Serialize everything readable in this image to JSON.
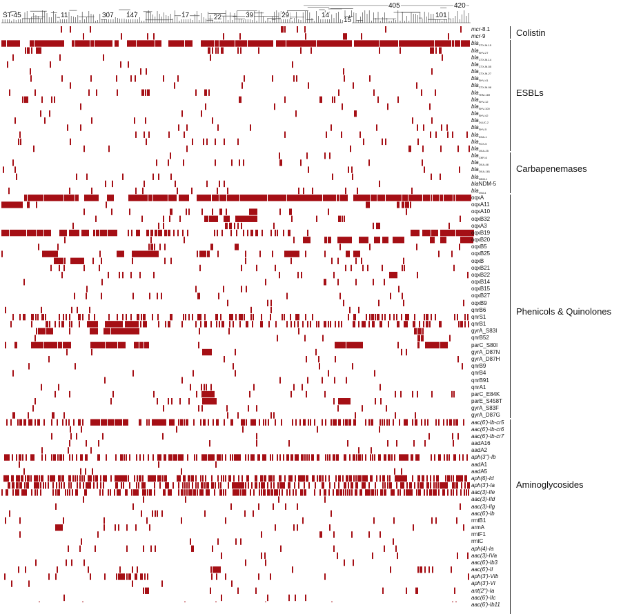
{
  "figure": {
    "colors": {
      "present": "#a50f15",
      "tree": "#333333",
      "background": "#ffffff"
    },
    "st_labels": [
      "ST-45",
      "11",
      "307",
      "147",
      "17",
      "22",
      "39",
      "29",
      "14",
      "15",
      "405",
      "101",
      "420"
    ],
    "genes": [
      {
        "id": "mcr81",
        "pre": "mcr",
        "post": "-8.1",
        "ital": "pre"
      },
      {
        "id": "mcr9",
        "pre": "mcr",
        "post": "-9",
        "ital": "pre"
      },
      {
        "id": "ctxm15",
        "pre": "bla",
        "sub": "CTX-M-15",
        "ital": "pre"
      },
      {
        "id": "shv27",
        "pre": "bla",
        "sub": "SHV-27",
        "ital": "pre"
      },
      {
        "id": "ctxm14",
        "pre": "bla",
        "sub": "CTX-M-14",
        "ital": "pre"
      },
      {
        "id": "ctxm55",
        "pre": "bla",
        "sub": "CTX-M-55",
        "ital": "pre"
      },
      {
        "id": "ctxm27",
        "pre": "bla",
        "sub": "CTX-M-27",
        "ital": "pre"
      },
      {
        "id": "shv41",
        "pre": "bla",
        "sub": "SHV-41",
        "ital": "pre"
      },
      {
        "id": "ctxm98",
        "pre": "bla",
        "sub": "CTX-M-98",
        "ital": "pre"
      },
      {
        "id": "tem169",
        "pre": "bla",
        "sub": "TEM-169",
        "ital": "pre"
      },
      {
        "id": "shv12",
        "pre": "bla",
        "sub": "SHV-12",
        "ital": "pre"
      },
      {
        "id": "shv100",
        "pre": "bla",
        "sub": "SHV-100",
        "ital": "pre"
      },
      {
        "id": "shv42",
        "pre": "bla",
        "sub": "SHV-42",
        "ital": "pre"
      },
      {
        "id": "dhc2",
        "pre": "bla",
        "sub": "DLUC-2",
        "ital": "pre"
      },
      {
        "id": "shv5",
        "pre": "bla",
        "sub": "SHV-5",
        "ital": "pre"
      },
      {
        "id": "dha1",
        "pre": "bla",
        "sub": "DHA-1",
        "ital": "pre"
      },
      {
        "id": "fox5",
        "pre": "bla",
        "sub": "FOX-5",
        "ital": "pre"
      },
      {
        "id": "oxa25",
        "pre": "bla",
        "sub": "OXA-25",
        "ital": "pre"
      },
      {
        "id": "cmy6",
        "pre": "bla",
        "sub": "CMY-6",
        "ital": "pre"
      },
      {
        "id": "oxa48",
        "pre": "bla",
        "sub": "OXA-48",
        "ital": "pre"
      },
      {
        "id": "oxa181",
        "pre": "bla",
        "sub": "OXA-181",
        "ital": "pre"
      },
      {
        "id": "ndm1",
        "pre": "bla",
        "sub": "NDM-1",
        "ital": "pre"
      },
      {
        "id": "ndm5",
        "pre": "bla",
        "post": "NDM-5",
        "ital": "pre"
      },
      {
        "id": "vim4",
        "pre": "bla",
        "sub": "VIM-4",
        "ital": "pre"
      },
      {
        "id": "oqxa",
        "post": "oqxA"
      },
      {
        "id": "oqxa11",
        "post": "oqxA11"
      },
      {
        "id": "oqxa10",
        "post": "oqxA10"
      },
      {
        "id": "oqxb32",
        "post": "oqxB32"
      },
      {
        "id": "oqxa3",
        "post": "oqxA3"
      },
      {
        "id": "oqxb19",
        "post": "oqxB19"
      },
      {
        "id": "oqxb20",
        "post": "oqxB20"
      },
      {
        "id": "oqxb5",
        "post": "oqxB5"
      },
      {
        "id": "oqxb25",
        "post": "oqxB25"
      },
      {
        "id": "oqxb",
        "post": "oqxB"
      },
      {
        "id": "oqxb21",
        "post": "oqxB21"
      },
      {
        "id": "oqxb22",
        "post": "oqxB22"
      },
      {
        "id": "oqxb14",
        "post": "oqxB14"
      },
      {
        "id": "oqxb15",
        "post": "oqxB15"
      },
      {
        "id": "oqxb27",
        "post": "oqxB27"
      },
      {
        "id": "oqxb9",
        "post": "oqxB9"
      },
      {
        "id": "qnrb6",
        "post": "qnrB6"
      },
      {
        "id": "qnrs1",
        "post": "qnrS1"
      },
      {
        "id": "qnrb1",
        "post": "qnrB1"
      },
      {
        "id": "gyra83i",
        "post": "gyrA_S83I"
      },
      {
        "id": "qnrb52",
        "post": "qnrB52"
      },
      {
        "id": "parc80i",
        "post": "parC_S80I"
      },
      {
        "id": "gyra87n",
        "post": "gyrA_D87N"
      },
      {
        "id": "gyra87h",
        "post": "gyrA_D87H"
      },
      {
        "id": "qnrb9",
        "post": "qnrB9"
      },
      {
        "id": "qnrb4",
        "post": "qnrB4"
      },
      {
        "id": "qnrb91",
        "post": "qnrB91"
      },
      {
        "id": "qnra1",
        "post": "qnrA1"
      },
      {
        "id": "parc84k",
        "post": "parC_E84K"
      },
      {
        "id": "pare458t",
        "post": "parE_S458T"
      },
      {
        "id": "gyra83f",
        "post": "gyrA_S83F"
      },
      {
        "id": "gyra87g",
        "post": "gyrA_D87G"
      },
      {
        "id": "cr5",
        "post": "aac(6')-Ib-cr5",
        "ital": "all"
      },
      {
        "id": "cr6",
        "post": "aac(6')-Ib-cr6",
        "ital": "all"
      },
      {
        "id": "cr7",
        "post": "aac(6')-Ib-cr7",
        "ital": "all"
      },
      {
        "id": "aada16",
        "post": "aadA16"
      },
      {
        "id": "aada2",
        "post": "aadA2"
      },
      {
        "id": "aph3ib",
        "post": "aph(3'')-Ib",
        "ital": "all"
      },
      {
        "id": "aada1",
        "post": "aadA1"
      },
      {
        "id": "aada5",
        "post": "aadA5"
      },
      {
        "id": "aph6id",
        "post": "aph(6)-Id",
        "ital": "all"
      },
      {
        "id": "aph3ia",
        "post": "aph(3')-Ia",
        "ital": "all"
      },
      {
        "id": "aac3iie",
        "post": "aac(3)-IIe",
        "ital": "all"
      },
      {
        "id": "aac3iid",
        "post": "aac(3)-IId",
        "ital": "all"
      },
      {
        "id": "aac3iig",
        "post": "aac(3)-IIg",
        "ital": "all"
      },
      {
        "id": "aac6ib",
        "post": "aac(6')-Ib",
        "ital": "all"
      },
      {
        "id": "rmtb1",
        "post": "rmtB1"
      },
      {
        "id": "arma",
        "post": "armA"
      },
      {
        "id": "rmtf1",
        "post": "rmtF1"
      },
      {
        "id": "rmtc",
        "post": "rmtC"
      },
      {
        "id": "aph4ia",
        "post": "aph(4)-Ia",
        "ital": "all"
      },
      {
        "id": "aac3iva",
        "post": "aac(3)-IVa",
        "ital": "all"
      },
      {
        "id": "aac6ib3",
        "post": "aac(6')-Ib3",
        "ital": "all"
      },
      {
        "id": "aac6ii",
        "post": "aac(6')-II",
        "ital": "all"
      },
      {
        "id": "aph3vib",
        "post": "aph(3')-VIb",
        "ital": "all"
      },
      {
        "id": "aph3vi",
        "post": "aph(3')-VI",
        "ital": "all"
      },
      {
        "id": "ant2ia",
        "post": "ant(2'')-Ia",
        "ital": "all"
      },
      {
        "id": "aac6iic",
        "post": "aac(6')-IIc",
        "ital": "all"
      },
      {
        "id": "aac6ib11",
        "post": "aac(6')-Ib11",
        "ital": "all"
      }
    ],
    "categories": [
      {
        "id": "colistin",
        "label": "Colistin"
      },
      {
        "id": "esbl",
        "label": "ESBLs"
      },
      {
        "id": "carba",
        "label": "Carbapenemases"
      },
      {
        "id": "phenicol",
        "label": "Phenicols & Quinolones"
      },
      {
        "id": "amino",
        "label": "Aminoglycosides"
      }
    ]
  }
}
